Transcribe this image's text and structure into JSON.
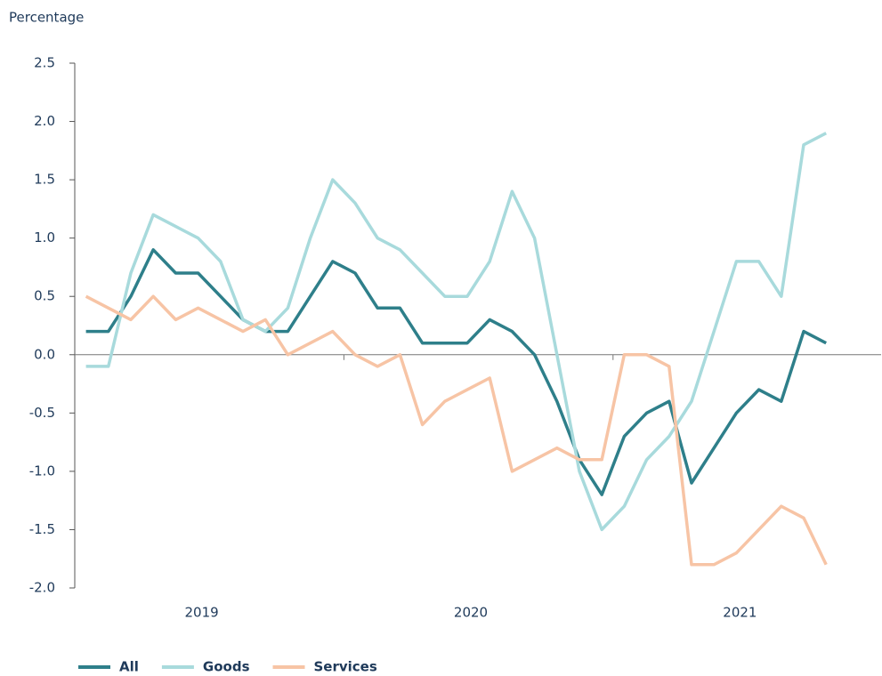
{
  "chart_data": {
    "type": "line",
    "y_label": "Percentage",
    "categories": [
      null,
      null,
      null,
      null,
      null,
      "2019",
      null,
      null,
      null,
      null,
      null,
      null,
      null,
      null,
      null,
      null,
      null,
      "2020",
      null,
      null,
      null,
      null,
      null,
      null,
      null,
      null,
      null,
      null,
      null,
      "2021",
      null,
      null,
      null,
      null
    ],
    "series": [
      {
        "name": "All",
        "color": "#2e7f8a",
        "values": [
          0.2,
          0.2,
          0.5,
          0.9,
          0.7,
          0.7,
          0.5,
          0.3,
          0.2,
          0.2,
          0.5,
          0.8,
          0.7,
          0.4,
          0.4,
          0.1,
          0.1,
          0.1,
          0.3,
          0.2,
          0.0,
          -0.4,
          -0.9,
          -1.2,
          -0.7,
          -0.5,
          -0.4,
          -1.1,
          -0.8,
          -0.5,
          -0.3,
          -0.4,
          0.2,
          0.1
        ]
      },
      {
        "name": "Goods",
        "color": "#a8dadc",
        "values": [
          -0.1,
          -0.1,
          0.7,
          1.2,
          1.1,
          1.0,
          0.8,
          0.3,
          0.2,
          0.4,
          1.0,
          1.5,
          1.3,
          1.0,
          0.9,
          0.7,
          0.5,
          0.5,
          0.8,
          1.4,
          1.0,
          0.0,
          -1.0,
          -1.5,
          -1.3,
          -0.9,
          -0.7,
          -0.4,
          0.2,
          0.8,
          0.8,
          0.5,
          1.8,
          1.9
        ]
      },
      {
        "name": "Services",
        "color": "#f7c4a5",
        "values": [
          0.5,
          0.4,
          0.3,
          0.5,
          0.3,
          0.4,
          0.3,
          0.2,
          0.3,
          0.0,
          0.1,
          0.2,
          0.0,
          -0.1,
          0.0,
          -0.6,
          -0.4,
          -0.3,
          -0.2,
          -1.0,
          -0.9,
          -0.8,
          -0.9,
          -0.9,
          0.0,
          0.0,
          -0.1,
          -1.8,
          -1.8,
          -1.7,
          -1.5,
          -1.3,
          -1.4,
          -1.8
        ]
      }
    ],
    "ylim": [
      -2,
      2.5
    ],
    "yticks": [
      {
        "value": -2,
        "label": "-2.0"
      },
      -1.5,
      {
        "value": -1,
        "label": "-1.0"
      },
      -0.5,
      {
        "value": 0,
        "label": "0.0"
      },
      0.5,
      {
        "value": 1,
        "label": "1.0"
      },
      1.5,
      {
        "value": 2,
        "label": "2.0"
      },
      2.5
    ],
    "grid": false,
    "legend": "bottom"
  }
}
